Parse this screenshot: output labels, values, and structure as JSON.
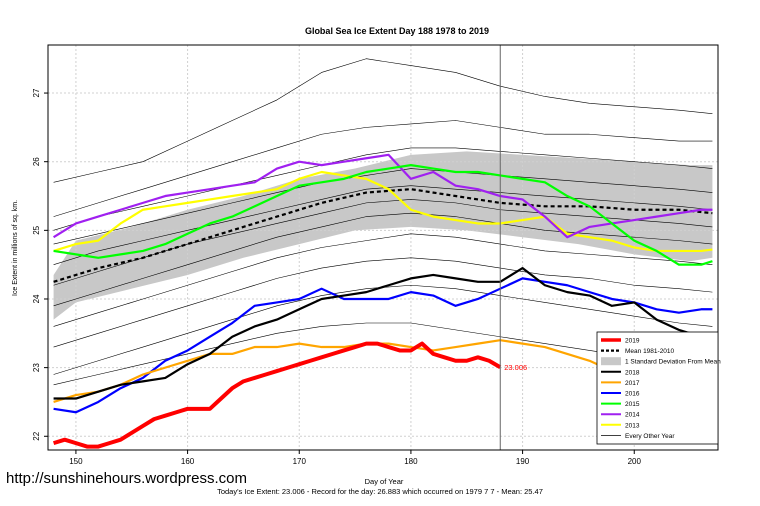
{
  "watermark": "http://sunshinehours.wordpress.com",
  "footer": "Today's Ice Extent: 23.006  - Record for the day: 26.883 which occurred on 1979 7 7  - Mean: 25.47",
  "marker_label": "23.006",
  "chart_data": {
    "type": "line",
    "title": "Global Sea Ice Extent Day 188 1978 to 2019",
    "xlabel": "Day of Year",
    "ylabel": "Ice Extent in millions of sq. km.",
    "xlim": [
      147.5,
      207.5
    ],
    "ylim": [
      21.8,
      27.7
    ],
    "x_ticks": [
      150,
      160,
      170,
      180,
      190,
      200
    ],
    "y_ticks": [
      22,
      23,
      24,
      25,
      26,
      27
    ],
    "grid": true,
    "vertical_marker_day": 188,
    "legend_position": "bottom-right",
    "legend": [
      {
        "label": "2019",
        "color": "#ff0000",
        "style": "thick"
      },
      {
        "label": "Mean 1981-2010",
        "color": "#000000",
        "style": "dotted"
      },
      {
        "label": "1 Standard Deviation From Mean",
        "color": "#c8c8c8",
        "style": "band"
      },
      {
        "label": "2018",
        "color": "#000000",
        "style": "line"
      },
      {
        "label": "2017",
        "color": "#ffa500",
        "style": "line"
      },
      {
        "label": "2016",
        "color": "#0000ff",
        "style": "line"
      },
      {
        "label": "2015",
        "color": "#00ff00",
        "style": "line"
      },
      {
        "label": "2014",
        "color": "#a020f0",
        "style": "line"
      },
      {
        "label": "2013",
        "color": "#ffff00",
        "style": "line"
      },
      {
        "label": "Every Other Year",
        "color": "#000000",
        "style": "thin"
      }
    ],
    "band": {
      "x": [
        148,
        150,
        155,
        160,
        165,
        170,
        175,
        180,
        185,
        190,
        195,
        200,
        205,
        207
      ],
      "upper": [
        24.35,
        24.85,
        25.05,
        25.3,
        25.5,
        25.75,
        25.9,
        26.1,
        26.15,
        26.1,
        26.05,
        26.0,
        25.95,
        25.95
      ],
      "lower": [
        23.7,
        23.95,
        24.15,
        24.35,
        24.6,
        24.8,
        25.0,
        25.05,
        25.0,
        24.9,
        24.8,
        24.65,
        24.55,
        24.6
      ]
    },
    "series": [
      {
        "name": "Mean 1981-2010",
        "color": "#000000",
        "style": "dotted",
        "x": [
          148,
          152,
          156,
          160,
          164,
          168,
          172,
          176,
          180,
          184,
          188,
          192,
          196,
          200,
          204,
          207
        ],
        "y": [
          24.25,
          24.45,
          24.6,
          24.8,
          25.0,
          25.2,
          25.4,
          25.55,
          25.6,
          25.5,
          25.4,
          25.35,
          25.35,
          25.3,
          25.3,
          25.25
        ]
      },
      {
        "name": "2013",
        "color": "#ffff00",
        "x": [
          148,
          150,
          152,
          154,
          156,
          158,
          160,
          162,
          164,
          166,
          168,
          170,
          172,
          174,
          176,
          178,
          180,
          182,
          184,
          186,
          188,
          190,
          192,
          194,
          196,
          198,
          200,
          202,
          204,
          206,
          207
        ],
        "y": [
          24.7,
          24.8,
          24.85,
          25.1,
          25.3,
          25.35,
          25.4,
          25.45,
          25.5,
          25.55,
          25.6,
          25.75,
          25.85,
          25.8,
          25.75,
          25.6,
          25.3,
          25.2,
          25.15,
          25.1,
          25.1,
          25.15,
          25.2,
          24.95,
          24.9,
          24.85,
          24.75,
          24.7,
          24.7,
          24.7,
          24.72
        ]
      },
      {
        "name": "2014",
        "color": "#a020f0",
        "x": [
          148,
          150,
          152,
          154,
          156,
          158,
          160,
          162,
          164,
          166,
          168,
          170,
          172,
          174,
          176,
          178,
          180,
          182,
          184,
          186,
          188,
          190,
          192,
          194,
          196,
          198,
          200,
          202,
          204,
          206,
          207
        ],
        "y": [
          24.9,
          25.1,
          25.2,
          25.3,
          25.4,
          25.5,
          25.55,
          25.6,
          25.65,
          25.7,
          25.9,
          26.0,
          25.95,
          26.0,
          26.05,
          26.1,
          25.75,
          25.85,
          25.65,
          25.6,
          25.5,
          25.45,
          25.2,
          24.9,
          25.05,
          25.1,
          25.15,
          25.2,
          25.25,
          25.3,
          25.3
        ]
      },
      {
        "name": "2015",
        "color": "#00ff00",
        "x": [
          148,
          150,
          152,
          154,
          156,
          158,
          160,
          162,
          164,
          166,
          168,
          170,
          172,
          174,
          176,
          178,
          180,
          182,
          184,
          186,
          188,
          190,
          192,
          194,
          196,
          198,
          200,
          202,
          204,
          206,
          207
        ],
        "y": [
          24.7,
          24.65,
          24.6,
          24.65,
          24.7,
          24.8,
          24.95,
          25.1,
          25.2,
          25.35,
          25.5,
          25.65,
          25.7,
          25.75,
          25.85,
          25.9,
          25.95,
          25.9,
          25.85,
          25.85,
          25.8,
          25.75,
          25.7,
          25.5,
          25.35,
          25.1,
          24.85,
          24.7,
          24.5,
          24.5,
          24.55
        ]
      },
      {
        "name": "2016",
        "color": "#0000ff",
        "x": [
          148,
          150,
          152,
          154,
          156,
          158,
          160,
          162,
          164,
          166,
          168,
          170,
          172,
          174,
          176,
          178,
          180,
          182,
          184,
          186,
          188,
          190,
          192,
          194,
          196,
          198,
          200,
          202,
          204,
          206,
          207
        ],
        "y": [
          22.4,
          22.35,
          22.5,
          22.7,
          22.85,
          23.1,
          23.25,
          23.45,
          23.65,
          23.9,
          23.95,
          24.0,
          24.15,
          24.0,
          24.0,
          24.0,
          24.1,
          24.05,
          23.9,
          24.0,
          24.15,
          24.3,
          24.25,
          24.2,
          24.1,
          24.0,
          23.95,
          23.85,
          23.8,
          23.85,
          23.85
        ]
      },
      {
        "name": "2017",
        "color": "#ffa500",
        "x": [
          148,
          150,
          152,
          154,
          156,
          158,
          160,
          162,
          164,
          166,
          168,
          170,
          172,
          174,
          176,
          178,
          180,
          182,
          184,
          186,
          188,
          190,
          192,
          194,
          196,
          198,
          200,
          202,
          204,
          206,
          207
        ],
        "y": [
          22.5,
          22.6,
          22.65,
          22.75,
          22.9,
          23.0,
          23.1,
          23.2,
          23.2,
          23.3,
          23.3,
          23.35,
          23.3,
          23.3,
          23.35,
          23.35,
          23.3,
          23.25,
          23.3,
          23.35,
          23.4,
          23.35,
          23.3,
          23.2,
          23.1,
          22.95,
          22.95,
          23.05,
          23.25,
          23.3,
          23.4
        ]
      },
      {
        "name": "2018",
        "color": "#000000",
        "x": [
          148,
          150,
          152,
          154,
          156,
          158,
          160,
          162,
          164,
          166,
          168,
          170,
          172,
          174,
          176,
          178,
          180,
          182,
          184,
          186,
          188,
          190,
          192,
          194,
          196,
          198,
          200,
          202,
          204,
          206,
          207
        ],
        "y": [
          22.55,
          22.55,
          22.65,
          22.75,
          22.8,
          22.85,
          23.05,
          23.2,
          23.45,
          23.6,
          23.7,
          23.85,
          24.0,
          24.05,
          24.1,
          24.2,
          24.3,
          24.35,
          24.3,
          24.25,
          24.25,
          24.45,
          24.2,
          24.1,
          24.05,
          23.9,
          23.95,
          23.7,
          23.55,
          23.45,
          23.4
        ]
      },
      {
        "name": "2019",
        "color": "#ff0000",
        "style": "thick",
        "x": [
          148,
          149,
          150,
          151,
          152,
          153,
          154,
          155,
          156,
          157,
          158,
          159,
          160,
          161,
          162,
          163,
          164,
          165,
          166,
          167,
          168,
          169,
          170,
          171,
          172,
          173,
          174,
          175,
          176,
          177,
          178,
          179,
          180,
          181,
          182,
          183,
          184,
          185,
          186,
          187,
          188
        ],
        "y": [
          21.9,
          21.95,
          21.9,
          21.85,
          21.85,
          21.9,
          21.95,
          22.05,
          22.15,
          22.25,
          22.3,
          22.35,
          22.4,
          22.4,
          22.4,
          22.55,
          22.7,
          22.8,
          22.85,
          22.9,
          22.95,
          23.0,
          23.05,
          23.1,
          23.15,
          23.2,
          23.25,
          23.3,
          23.35,
          23.35,
          23.3,
          23.25,
          23.25,
          23.35,
          23.2,
          23.15,
          23.1,
          23.1,
          23.15,
          23.1,
          23.006
        ]
      },
      {
        "name": "Every Other Year",
        "color": "#000000",
        "style": "thin",
        "x": [
          148,
          152,
          156,
          160,
          164,
          168,
          172,
          176,
          180,
          184,
          188,
          192,
          196,
          200,
          204,
          207
        ],
        "y": [
          25.7,
          25.85,
          26.0,
          26.3,
          26.6,
          26.9,
          27.3,
          27.5,
          27.4,
          27.3,
          27.1,
          26.95,
          26.85,
          26.8,
          26.75,
          26.7
        ]
      },
      {
        "name": "Every Other Year",
        "color": "#000000",
        "style": "thin",
        "x": [
          148,
          152,
          156,
          160,
          164,
          168,
          172,
          176,
          180,
          184,
          188,
          192,
          196,
          200,
          204,
          207
        ],
        "y": [
          25.2,
          25.4,
          25.6,
          25.8,
          26.0,
          26.2,
          26.4,
          26.5,
          26.55,
          26.6,
          26.5,
          26.4,
          26.4,
          26.35,
          26.3,
          26.3
        ]
      },
      {
        "name": "Every Other Year",
        "color": "#000000",
        "style": "thin",
        "x": [
          148,
          152,
          156,
          160,
          164,
          168,
          172,
          176,
          180,
          184,
          188,
          192,
          196,
          200,
          204,
          207
        ],
        "y": [
          25.0,
          25.2,
          25.35,
          25.5,
          25.65,
          25.8,
          25.95,
          26.1,
          26.2,
          26.2,
          26.15,
          26.1,
          26.05,
          26.0,
          25.95,
          25.9
        ]
      },
      {
        "name": "Every Other Year",
        "color": "#000000",
        "style": "thin",
        "x": [
          148,
          152,
          156,
          160,
          164,
          168,
          172,
          176,
          180,
          184,
          188,
          192,
          196,
          200,
          204,
          207
        ],
        "y": [
          24.8,
          24.95,
          25.1,
          25.25,
          25.4,
          25.55,
          25.7,
          25.8,
          25.9,
          25.85,
          25.8,
          25.75,
          25.7,
          25.65,
          25.6,
          25.55
        ]
      },
      {
        "name": "Every Other Year",
        "color": "#000000",
        "style": "thin",
        "x": [
          148,
          152,
          156,
          160,
          164,
          168,
          172,
          176,
          180,
          184,
          188,
          192,
          196,
          200,
          204,
          207
        ],
        "y": [
          24.5,
          24.7,
          24.85,
          25.0,
          25.15,
          25.3,
          25.45,
          25.6,
          25.65,
          25.6,
          25.55,
          25.5,
          25.45,
          25.4,
          25.35,
          25.3
        ]
      },
      {
        "name": "Every Other Year",
        "color": "#000000",
        "style": "thin",
        "x": [
          148,
          152,
          156,
          160,
          164,
          168,
          172,
          176,
          180,
          184,
          188,
          192,
          196,
          200,
          204,
          207
        ],
        "y": [
          24.2,
          24.4,
          24.6,
          24.8,
          24.95,
          25.1,
          25.25,
          25.4,
          25.45,
          25.4,
          25.3,
          25.25,
          25.2,
          25.15,
          25.1,
          25.05
        ]
      },
      {
        "name": "Every Other Year",
        "color": "#000000",
        "style": "thin",
        "x": [
          148,
          152,
          156,
          160,
          164,
          168,
          172,
          176,
          180,
          184,
          188,
          192,
          196,
          200,
          204,
          207
        ],
        "y": [
          23.9,
          24.1,
          24.3,
          24.5,
          24.7,
          24.9,
          25.05,
          25.2,
          25.25,
          25.2,
          25.1,
          25.0,
          24.95,
          24.9,
          24.85,
          24.8
        ]
      },
      {
        "name": "Every Other Year",
        "color": "#000000",
        "style": "thin",
        "x": [
          148,
          152,
          156,
          160,
          164,
          168,
          172,
          176,
          180,
          184,
          188,
          192,
          196,
          200,
          204,
          207
        ],
        "y": [
          23.6,
          23.8,
          24.0,
          24.2,
          24.4,
          24.6,
          24.75,
          24.85,
          24.95,
          24.9,
          24.8,
          24.7,
          24.65,
          24.6,
          24.55,
          24.5
        ]
      },
      {
        "name": "Every Other Year",
        "color": "#000000",
        "style": "thin",
        "x": [
          148,
          152,
          156,
          160,
          164,
          168,
          172,
          176,
          180,
          184,
          188,
          192,
          196,
          200,
          204,
          207
        ],
        "y": [
          23.3,
          23.5,
          23.7,
          23.9,
          24.1,
          24.3,
          24.45,
          24.55,
          24.6,
          24.55,
          24.45,
          24.35,
          24.3,
          24.2,
          24.15,
          24.1
        ]
      },
      {
        "name": "Every Other Year",
        "color": "#000000",
        "style": "thin",
        "x": [
          148,
          152,
          156,
          160,
          164,
          168,
          172,
          176,
          180,
          184,
          188,
          192,
          196,
          200,
          204,
          207
        ],
        "y": [
          22.9,
          23.1,
          23.3,
          23.5,
          23.7,
          23.9,
          24.05,
          24.15,
          24.2,
          24.15,
          24.05,
          23.95,
          23.85,
          23.75,
          23.65,
          23.6
        ]
      },
      {
        "name": "Every Other Year",
        "color": "#000000",
        "style": "thin",
        "x": [
          148,
          152,
          156,
          160,
          164,
          168,
          172,
          176,
          180,
          184,
          188,
          192,
          196,
          200,
          204,
          207
        ],
        "y": [
          22.75,
          22.9,
          23.05,
          23.2,
          23.35,
          23.5,
          23.6,
          23.65,
          23.65,
          23.55,
          23.45,
          23.35,
          23.25,
          23.15,
          23.05,
          23.0
        ]
      }
    ]
  }
}
